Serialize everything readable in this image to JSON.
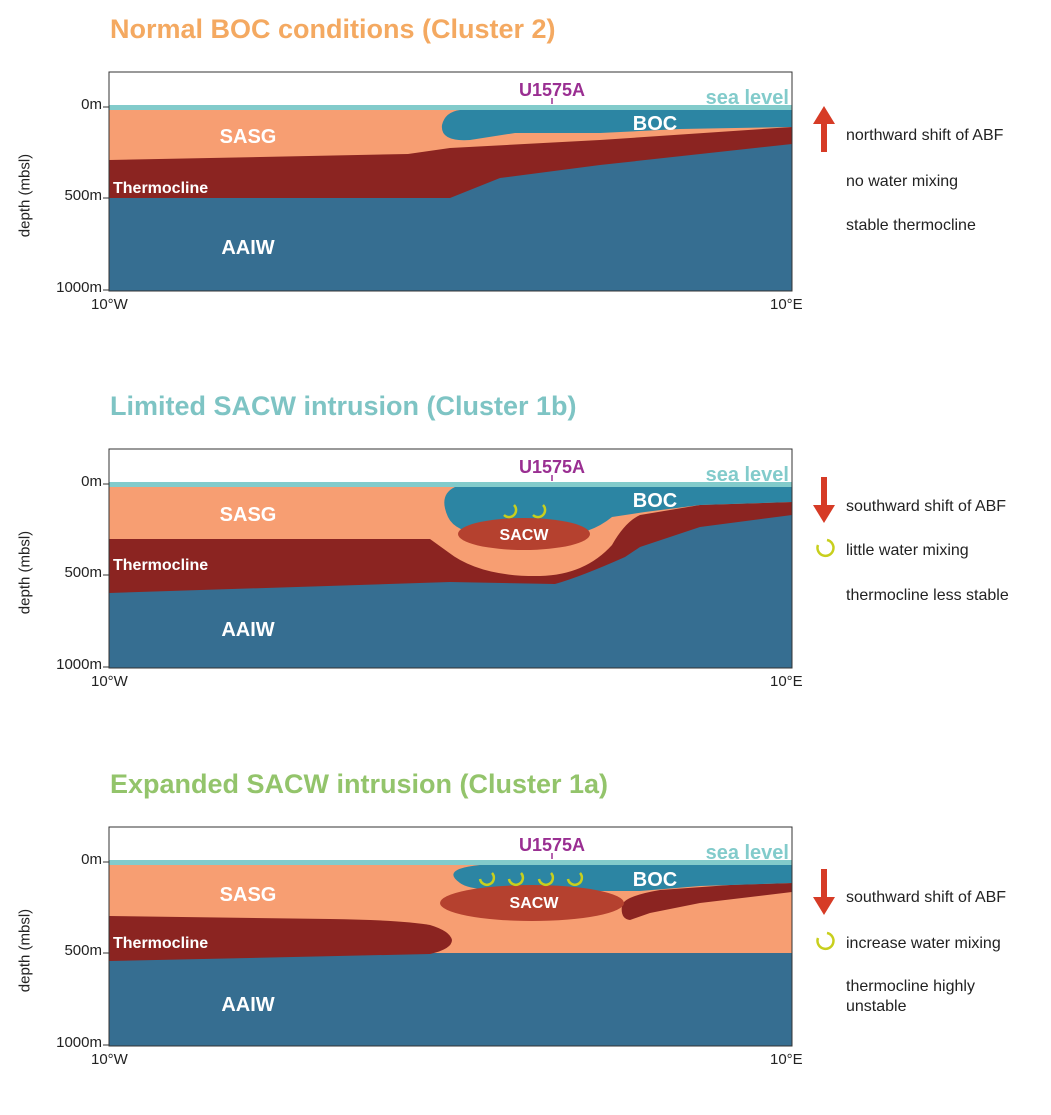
{
  "panels": [
    {
      "title": "Normal BOC conditions (Cluster 2)",
      "title_color": "#f4a961",
      "ylabel": "depth (mbsl)",
      "y_ticks": [
        "0m",
        "500m",
        "1000m"
      ],
      "x_ticks": [
        "10°W",
        "10°E"
      ],
      "site_label": "U1575A",
      "sea_level_label": "sea level",
      "water_labels": {
        "sasg": "SASG",
        "boc": "BOC",
        "thermocline": "Thermocline",
        "aaiw": "AAIW",
        "sacw": ""
      },
      "legend": [
        {
          "icon": "arrow-up-icon",
          "text": "northward shift of ABF"
        },
        {
          "icon": "",
          "text": "no water mixing"
        },
        {
          "icon": "",
          "text": "stable thermocline"
        }
      ]
    },
    {
      "title": "Limited SACW intrusion (Cluster 1b)",
      "title_color": "#7ec4c4",
      "ylabel": "depth (mbsl)",
      "y_ticks": [
        "0m",
        "500m",
        "1000m"
      ],
      "x_ticks": [
        "10°W",
        "10°E"
      ],
      "site_label": "U1575A",
      "sea_level_label": "sea level",
      "water_labels": {
        "sasg": "SASG",
        "boc": "BOC",
        "thermocline": "Thermocline",
        "aaiw": "AAIW",
        "sacw": "SACW"
      },
      "legend": [
        {
          "icon": "arrow-down-icon",
          "text": "southward shift of ABF"
        },
        {
          "icon": "mixing-icon",
          "text": "little water mixing"
        },
        {
          "icon": "",
          "text": "thermocline less stable"
        }
      ]
    },
    {
      "title": "Expanded SACW intrusion (Cluster 1a)",
      "title_color": "#93c46b",
      "ylabel": "depth (mbsl)",
      "y_ticks": [
        "0m",
        "500m",
        "1000m"
      ],
      "x_ticks": [
        "10°W",
        "10°E"
      ],
      "site_label": "U1575A",
      "sea_level_label": "sea level",
      "water_labels": {
        "sasg": "SASG",
        "boc": "BOC",
        "thermocline": "Thermocline",
        "aaiw": "AAIW",
        "sacw": "SACW"
      },
      "legend": [
        {
          "icon": "arrow-down-icon",
          "text": "southward shift of ABF"
        },
        {
          "icon": "mixing-icon",
          "text": "increase water mixing"
        },
        {
          "icon": "",
          "text": "thermocline highly unstable"
        }
      ]
    }
  ],
  "colors": {
    "aaiw": "#366e91",
    "thermocline": "#8b2421",
    "sasg": "#f79e72",
    "boc": "#2c85a3",
    "sacw": "#b5412f",
    "sea": "#82cbcb",
    "site": "#9a2f92",
    "arrow": "#d63b26",
    "mixing": "#c8cf1d"
  }
}
